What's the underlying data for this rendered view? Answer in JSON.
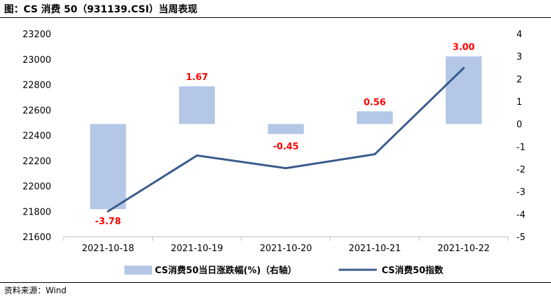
{
  "title": "图：CS 消费 50（931139.CSI）当周表现",
  "source": "资料来源：Wind",
  "chart_data": {
    "type": "bar+line",
    "categories": [
      "2021-10-18",
      "2021-10-19",
      "2021-10-20",
      "2021-10-21",
      "2021-10-22"
    ],
    "series": [
      {
        "name": "CS消费50当日涨跌幅(%)（右轴）",
        "type": "bar",
        "axis": "right",
        "color": "#b4c7e7",
        "values": [
          -3.78,
          1.67,
          -0.45,
          0.56,
          3.0
        ],
        "labels": [
          "-3.78",
          "1.67",
          "-0.45",
          "0.56",
          "3.00"
        ],
        "label_color": "#ff0000"
      },
      {
        "name": "CS消费50指数",
        "type": "line",
        "axis": "left",
        "color": "#3a5a8c",
        "values": [
          21800,
          22240,
          22140,
          22250,
          22930
        ]
      }
    ],
    "left_axis": {
      "min": 21600,
      "max": 23200,
      "step": 200,
      "ticks": [
        "21600",
        "21800",
        "22000",
        "22200",
        "22400",
        "22600",
        "22800",
        "23000",
        "23200"
      ]
    },
    "right_axis": {
      "min": -5,
      "max": 4,
      "step": 1,
      "ticks": [
        "-5",
        "-4",
        "-3",
        "-2",
        "-1",
        "0",
        "1",
        "2",
        "3",
        "4"
      ]
    },
    "legend": {
      "position": "bottom",
      "bar_label": "CS消费50当日涨跌幅(%)（右轴）",
      "line_label": "CS消费50指数"
    }
  }
}
